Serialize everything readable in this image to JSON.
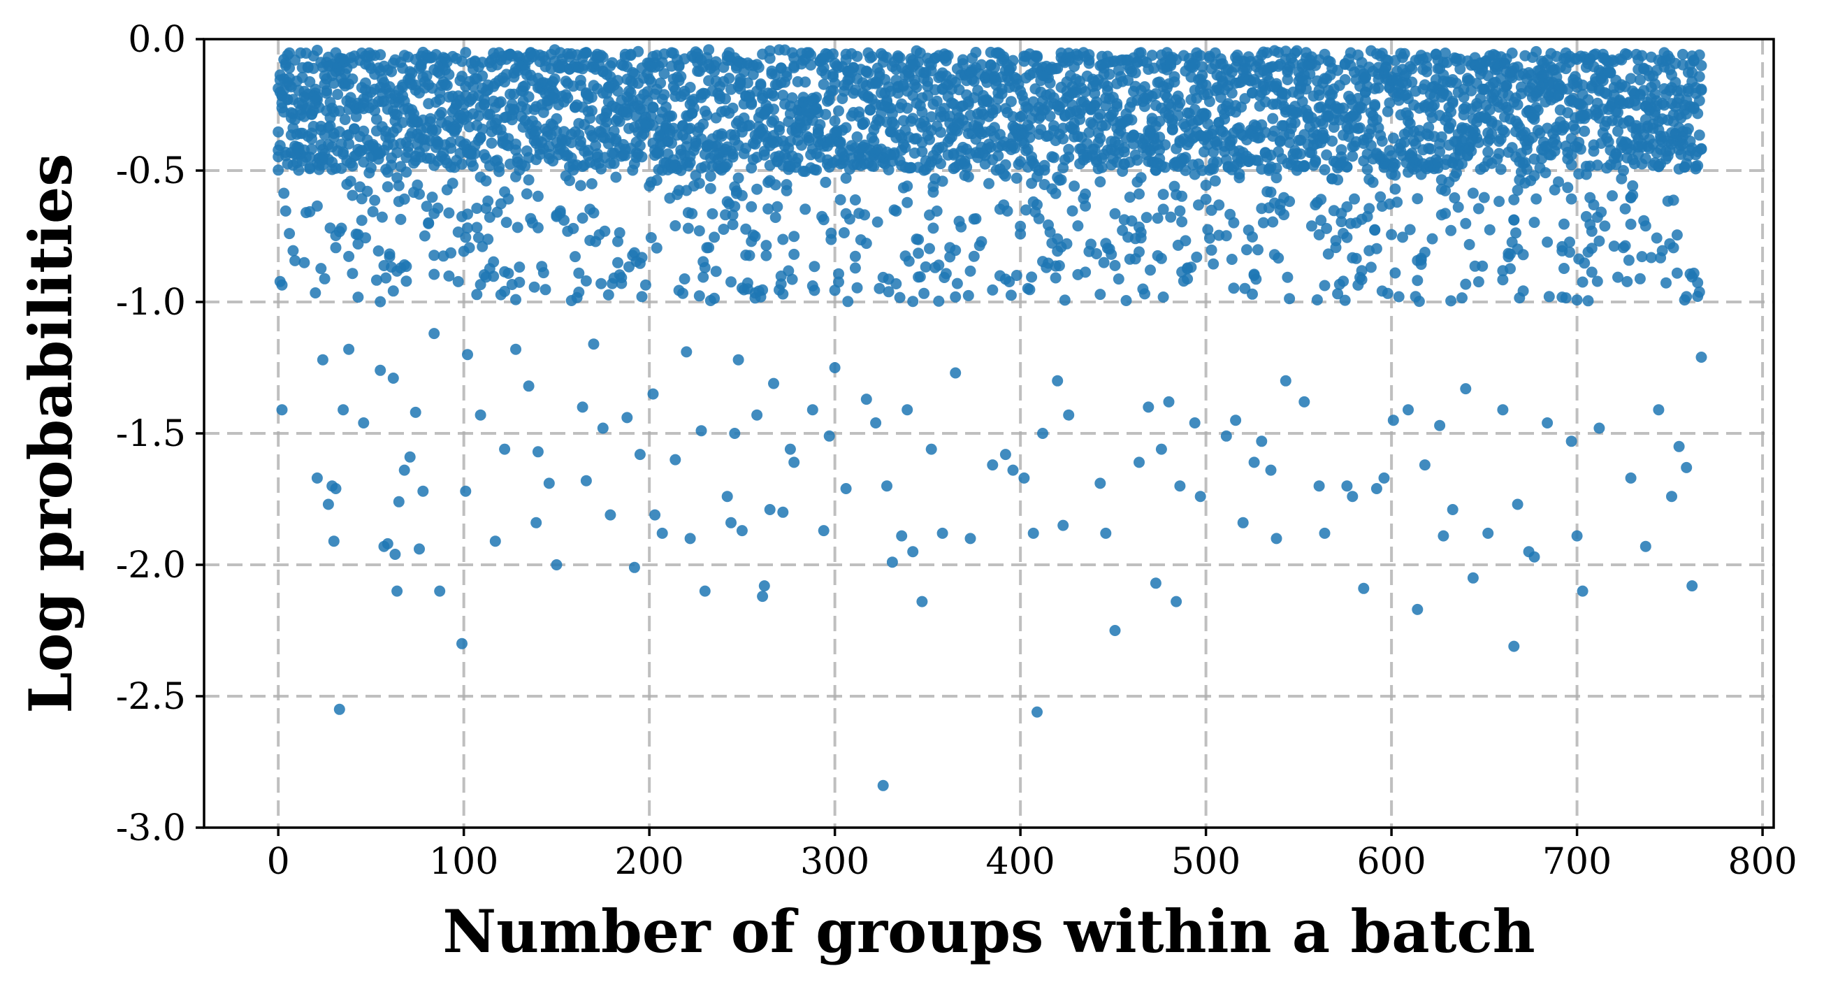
{
  "chart_data": {
    "type": "scatter",
    "title": "",
    "xlabel": "Number of groups within a batch",
    "ylabel": "Log probabilities",
    "xlim": [
      -40,
      806
    ],
    "ylim": [
      -3.0,
      0.0
    ],
    "xticks": [
      0,
      100,
      200,
      300,
      400,
      500,
      600,
      700,
      800
    ],
    "xtick_labels": [
      "0",
      "100",
      "200",
      "300",
      "400",
      "500",
      "600",
      "700",
      "800"
    ],
    "yticks": [
      0.0,
      -0.5,
      -1.0,
      -1.5,
      -2.0,
      -2.5,
      -3.0
    ],
    "ytick_labels": [
      "0.0",
      "-0.5",
      "-1.0",
      "-1.5",
      "-2.0",
      "-2.5",
      "-3.0"
    ],
    "grid": true,
    "marker_color": "#1f77b4",
    "series": [
      {
        "x_range": [
          0,
          767
        ],
        "points_per_group": 5,
        "dense_band": [
          -0.5,
          -0.05
        ],
        "outliers": [
          [
            2,
            -1.41
          ],
          [
            21,
            -1.67
          ],
          [
            24,
            -1.22
          ],
          [
            27,
            -1.77
          ],
          [
            29,
            -1.7
          ],
          [
            30,
            -1.91
          ],
          [
            31,
            -1.71
          ],
          [
            33,
            -2.55
          ],
          [
            35,
            -1.41
          ],
          [
            38,
            -1.18
          ],
          [
            46,
            -1.46
          ],
          [
            55,
            -1.26
          ],
          [
            57,
            -1.93
          ],
          [
            59,
            -1.92
          ],
          [
            62,
            -1.29
          ],
          [
            63,
            -1.96
          ],
          [
            64,
            -2.1
          ],
          [
            65,
            -1.76
          ],
          [
            68,
            -1.64
          ],
          [
            71,
            -1.59
          ],
          [
            74,
            -1.42
          ],
          [
            76,
            -1.94
          ],
          [
            78,
            -1.72
          ],
          [
            84,
            -1.12
          ],
          [
            87,
            -2.1
          ],
          [
            99,
            -2.3
          ],
          [
            101,
            -1.72
          ],
          [
            102,
            -1.2
          ],
          [
            109,
            -1.43
          ],
          [
            117,
            -1.91
          ],
          [
            122,
            -1.56
          ],
          [
            128,
            -1.18
          ],
          [
            135,
            -1.32
          ],
          [
            139,
            -1.84
          ],
          [
            140,
            -1.57
          ],
          [
            146,
            -1.69
          ],
          [
            150,
            -2.0
          ],
          [
            164,
            -1.4
          ],
          [
            166,
            -1.68
          ],
          [
            170,
            -1.16
          ],
          [
            175,
            -1.48
          ],
          [
            179,
            -1.81
          ],
          [
            188,
            -1.44
          ],
          [
            192,
            -2.01
          ],
          [
            195,
            -1.58
          ],
          [
            202,
            -1.35
          ],
          [
            203,
            -1.81
          ],
          [
            207,
            -1.88
          ],
          [
            214,
            -1.6
          ],
          [
            220,
            -1.19
          ],
          [
            222,
            -1.9
          ],
          [
            228,
            -1.49
          ],
          [
            230,
            -2.1
          ],
          [
            242,
            -1.74
          ],
          [
            244,
            -1.84
          ],
          [
            246,
            -1.5
          ],
          [
            248,
            -1.22
          ],
          [
            250,
            -1.87
          ],
          [
            258,
            -1.43
          ],
          [
            261,
            -2.12
          ],
          [
            262,
            -2.08
          ],
          [
            265,
            -1.79
          ],
          [
            267,
            -1.31
          ],
          [
            272,
            -1.8
          ],
          [
            276,
            -1.56
          ],
          [
            278,
            -1.61
          ],
          [
            288,
            -1.41
          ],
          [
            294,
            -1.87
          ],
          [
            297,
            -1.51
          ],
          [
            300,
            -1.25
          ],
          [
            306,
            -1.71
          ],
          [
            317,
            -1.37
          ],
          [
            322,
            -1.46
          ],
          [
            326,
            -2.84
          ],
          [
            328,
            -1.7
          ],
          [
            331,
            -1.99
          ],
          [
            336,
            -1.89
          ],
          [
            339,
            -1.41
          ],
          [
            342,
            -1.95
          ],
          [
            347,
            -2.14
          ],
          [
            352,
            -1.56
          ],
          [
            358,
            -1.88
          ],
          [
            365,
            -1.27
          ],
          [
            373,
            -1.9
          ],
          [
            385,
            -1.62
          ],
          [
            392,
            -1.58
          ],
          [
            396,
            -1.64
          ],
          [
            402,
            -1.67
          ],
          [
            407,
            -1.88
          ],
          [
            409,
            -2.56
          ],
          [
            412,
            -1.5
          ],
          [
            420,
            -1.3
          ],
          [
            423,
            -1.85
          ],
          [
            426,
            -1.43
          ],
          [
            443,
            -1.69
          ],
          [
            446,
            -1.88
          ],
          [
            451,
            -2.25
          ],
          [
            464,
            -1.61
          ],
          [
            469,
            -1.4
          ],
          [
            473,
            -2.07
          ],
          [
            476,
            -1.56
          ],
          [
            480,
            -1.38
          ],
          [
            484,
            -2.14
          ],
          [
            486,
            -1.7
          ],
          [
            494,
            -1.46
          ],
          [
            497,
            -1.74
          ],
          [
            511,
            -1.51
          ],
          [
            516,
            -1.45
          ],
          [
            520,
            -1.84
          ],
          [
            526,
            -1.61
          ],
          [
            530,
            -1.53
          ],
          [
            535,
            -1.64
          ],
          [
            538,
            -1.9
          ],
          [
            543,
            -1.3
          ],
          [
            553,
            -1.38
          ],
          [
            561,
            -1.7
          ],
          [
            564,
            -1.88
          ],
          [
            576,
            -1.7
          ],
          [
            579,
            -1.74
          ],
          [
            585,
            -2.09
          ],
          [
            592,
            -1.71
          ],
          [
            596,
            -1.67
          ],
          [
            601,
            -1.45
          ],
          [
            609,
            -1.41
          ],
          [
            614,
            -2.17
          ],
          [
            618,
            -1.62
          ],
          [
            626,
            -1.47
          ],
          [
            628,
            -1.89
          ],
          [
            633,
            -1.79
          ],
          [
            640,
            -1.33
          ],
          [
            644,
            -2.05
          ],
          [
            652,
            -1.88
          ],
          [
            660,
            -1.41
          ],
          [
            666,
            -2.31
          ],
          [
            668,
            -1.77
          ],
          [
            674,
            -1.95
          ],
          [
            677,
            -1.97
          ],
          [
            684,
            -1.46
          ],
          [
            697,
            -1.53
          ],
          [
            700,
            -1.89
          ],
          [
            703,
            -2.1
          ],
          [
            712,
            -1.48
          ],
          [
            729,
            -1.67
          ],
          [
            737,
            -1.93
          ],
          [
            744,
            -1.41
          ],
          [
            751,
            -1.74
          ],
          [
            755,
            -1.55
          ],
          [
            759,
            -1.63
          ],
          [
            762,
            -2.08
          ],
          [
            767,
            -1.21
          ]
        ]
      }
    ]
  }
}
